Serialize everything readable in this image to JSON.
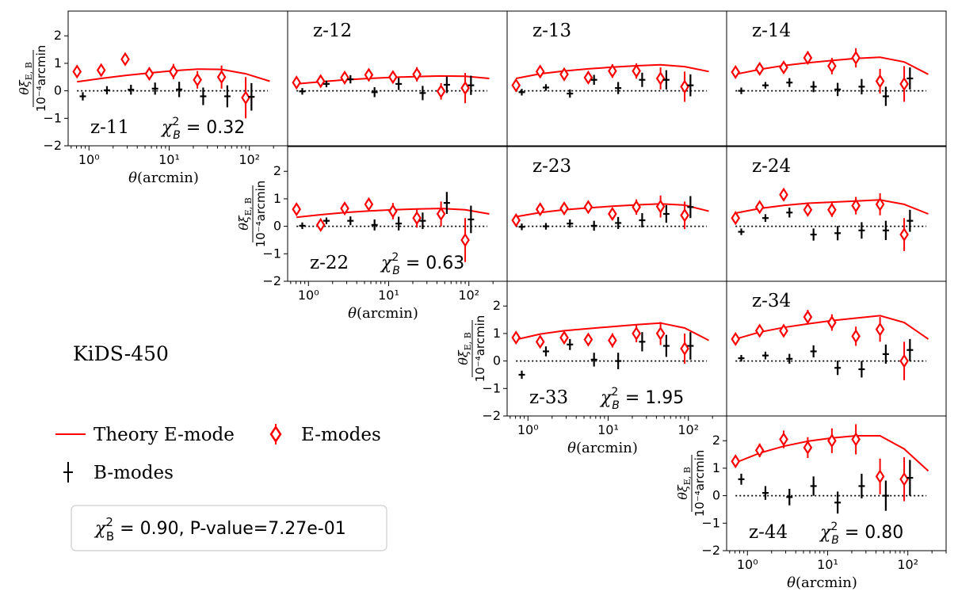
{
  "figure_title": "KiDS-450",
  "summary": {
    "text": "$\\chi^2_{\\rm B}=0.90$, P-value=7.27e-01",
    "chi_label": "χ",
    "chi_sup": "2",
    "chi_sub": "B",
    "value_text": " = 0.90, P-value=7.27e-01"
  },
  "legend": {
    "theory": "Theory E-mode",
    "emodes": "E-modes",
    "bmodes": "B-modes"
  },
  "colors": {
    "emode": "#ff0000",
    "theory": "#ff0000",
    "bmode": "#000000",
    "zero_line": "#000000"
  },
  "axis_text": {
    "xlabel_theta": "θ",
    "xlabel_unit": "(arcmin)",
    "ylabel_num": "θξ",
    "ylabel_sub": "E, B",
    "ylabel_den": "10⁻⁴arcmin",
    "yticks": [
      "−2",
      "−1",
      "0",
      "1",
      "2"
    ],
    "xticks": [
      "10⁰",
      "10¹",
      "10²"
    ]
  },
  "chart_data": {
    "type": "scatter",
    "xscale": "log",
    "xlim": [
      0.55,
      300
    ],
    "ylim": [
      -2,
      2.9
    ],
    "x_ticks": [
      1,
      10,
      100
    ],
    "y_ticks": [
      -2,
      -1,
      0,
      1,
      2
    ],
    "x": [
      0.71,
      1.42,
      2.83,
      5.65,
      11.3,
      22.5,
      45.0,
      90.0
    ],
    "theory_x": [
      0.71,
      1.42,
      2.83,
      5.65,
      11.3,
      22.5,
      45.0,
      90.0,
      180.0
    ],
    "panels": [
      {
        "id": "11",
        "label": "z-11",
        "chi2": "0.32",
        "e": [
          0.7,
          0.75,
          1.15,
          0.62,
          0.7,
          0.4,
          0.5,
          -0.25
        ],
        "e_err": [
          0.15,
          0.15,
          0.2,
          0.22,
          0.28,
          0.32,
          0.42,
          0.75
        ],
        "b": [
          -0.2,
          0.02,
          0.04,
          0.08,
          0.05,
          -0.2,
          -0.2,
          -0.22
        ],
        "b_err": [
          0.15,
          0.15,
          0.18,
          0.22,
          0.28,
          0.32,
          0.4,
          0.5
        ],
        "theory": [
          0.33,
          0.45,
          0.56,
          0.65,
          0.73,
          0.79,
          0.78,
          0.62,
          0.35
        ]
      },
      {
        "id": "12",
        "label": "z-12",
        "chi2": null,
        "e": [
          0.3,
          0.35,
          0.48,
          0.58,
          0.5,
          0.6,
          -0.02,
          0.1
        ],
        "e_err": [
          0.12,
          0.12,
          0.15,
          0.18,
          0.2,
          0.26,
          0.3,
          0.55
        ],
        "b": [
          -0.02,
          0.25,
          0.42,
          -0.05,
          0.25,
          -0.08,
          0.22,
          0.2
        ],
        "b_err": [
          0.12,
          0.12,
          0.15,
          0.18,
          0.22,
          0.26,
          0.3,
          0.35
        ],
        "theory": [
          0.25,
          0.33,
          0.4,
          0.45,
          0.49,
          0.52,
          0.54,
          0.53,
          0.45
        ]
      },
      {
        "id": "13",
        "label": "z-13",
        "chi2": null,
        "e": [
          0.2,
          0.7,
          0.6,
          0.48,
          0.72,
          0.72,
          0.45,
          0.15
        ],
        "e_err": [
          0.15,
          0.15,
          0.18,
          0.2,
          0.25,
          0.28,
          0.4,
          0.55
        ],
        "b": [
          -0.05,
          0.12,
          -0.1,
          0.4,
          0.1,
          0.4,
          0.4,
          0.2
        ],
        "b_err": [
          0.12,
          0.12,
          0.15,
          0.18,
          0.22,
          0.26,
          0.35,
          0.4
        ],
        "theory": [
          0.45,
          0.62,
          0.72,
          0.8,
          0.86,
          0.91,
          0.95,
          0.88,
          0.7
        ]
      },
      {
        "id": "14",
        "label": "z-14",
        "chi2": null,
        "e": [
          0.68,
          0.8,
          0.85,
          1.2,
          0.9,
          1.2,
          0.35,
          0.25
        ],
        "e_err": [
          0.15,
          0.16,
          0.2,
          0.24,
          0.3,
          0.35,
          0.45,
          0.65
        ],
        "b": [
          0.0,
          0.2,
          0.3,
          0.15,
          0.05,
          0.15,
          -0.2,
          0.45
        ],
        "b_err": [
          0.12,
          0.12,
          0.16,
          0.2,
          0.24,
          0.28,
          0.35,
          0.4
        ],
        "theory": [
          0.6,
          0.78,
          0.92,
          1.02,
          1.1,
          1.18,
          1.22,
          1.05,
          0.6
        ]
      },
      {
        "id": "22",
        "label": "z-22",
        "chi2": "0.63",
        "e": [
          0.62,
          0.05,
          0.65,
          0.8,
          0.55,
          0.3,
          0.45,
          -0.5
        ],
        "e_err": [
          0.15,
          0.15,
          0.2,
          0.24,
          0.3,
          0.35,
          0.45,
          0.8
        ],
        "b": [
          0.02,
          0.2,
          0.2,
          0.05,
          0.1,
          0.2,
          0.85,
          0.25
        ],
        "b_err": [
          0.12,
          0.12,
          0.16,
          0.2,
          0.25,
          0.3,
          0.4,
          0.5
        ],
        "theory": [
          0.33,
          0.42,
          0.5,
          0.56,
          0.6,
          0.63,
          0.65,
          0.6,
          0.45
        ]
      },
      {
        "id": "23",
        "label": "z-23",
        "chi2": null,
        "e": [
          0.22,
          0.62,
          0.65,
          0.7,
          0.45,
          0.7,
          0.72,
          0.4
        ],
        "e_err": [
          0.12,
          0.12,
          0.15,
          0.18,
          0.22,
          0.28,
          0.4,
          0.5
        ],
        "b": [
          -0.02,
          0.0,
          0.1,
          0.02,
          0.12,
          0.22,
          0.45,
          0.7
        ],
        "b_err": [
          0.12,
          0.12,
          0.15,
          0.18,
          0.22,
          0.26,
          0.32,
          0.4
        ],
        "theory": [
          0.35,
          0.5,
          0.6,
          0.67,
          0.73,
          0.78,
          0.82,
          0.77,
          0.55
        ]
      },
      {
        "id": "24",
        "label": "z-24",
        "chi2": null,
        "e": [
          0.3,
          0.7,
          1.15,
          0.6,
          0.6,
          0.75,
          0.8,
          -0.3
        ],
        "e_err": [
          0.15,
          0.15,
          0.18,
          0.22,
          0.26,
          0.32,
          0.4,
          0.6
        ],
        "b": [
          -0.2,
          0.3,
          0.5,
          -0.3,
          -0.25,
          -0.15,
          -0.15,
          0.2
        ],
        "b_err": [
          0.12,
          0.14,
          0.18,
          0.22,
          0.26,
          0.3,
          0.35,
          0.4
        ],
        "theory": [
          0.48,
          0.65,
          0.76,
          0.84,
          0.88,
          0.92,
          0.96,
          0.8,
          0.45
        ]
      },
      {
        "id": "33",
        "label": "z-33",
        "chi2": "1.95",
        "e": [
          0.85,
          0.7,
          0.85,
          0.78,
          0.75,
          1.0,
          1.0,
          0.45
        ],
        "e_err": [
          0.12,
          0.14,
          0.18,
          0.22,
          0.26,
          0.32,
          0.42,
          0.55
        ],
        "b": [
          -0.5,
          0.35,
          0.6,
          0.05,
          0.0,
          0.7,
          0.55,
          0.55
        ],
        "b_err": [
          0.15,
          0.18,
          0.2,
          0.25,
          0.3,
          0.35,
          0.4,
          0.5
        ],
        "theory": [
          0.78,
          0.98,
          1.1,
          1.18,
          1.25,
          1.32,
          1.38,
          1.2,
          0.75
        ]
      },
      {
        "id": "34",
        "label": "z-34",
        "chi2": null,
        "e": [
          0.8,
          1.1,
          1.1,
          1.6,
          1.4,
          0.9,
          1.15,
          0.0
        ],
        "e_err": [
          0.15,
          0.18,
          0.22,
          0.26,
          0.3,
          0.35,
          0.45,
          0.7
        ],
        "b": [
          0.1,
          0.2,
          0.08,
          0.35,
          -0.25,
          -0.3,
          0.25,
          0.4
        ],
        "b_err": [
          0.12,
          0.14,
          0.18,
          0.22,
          0.26,
          0.3,
          0.35,
          0.4
        ],
        "theory": [
          0.8,
          1.05,
          1.22,
          1.35,
          1.47,
          1.56,
          1.65,
          1.4,
          0.8
        ]
      },
      {
        "id": "44",
        "label": "z-44",
        "chi2": "0.80",
        "e": [
          1.25,
          1.65,
          2.05,
          1.75,
          2.0,
          2.05,
          0.7,
          0.6
        ],
        "e_err": [
          0.18,
          0.25,
          0.32,
          0.38,
          0.45,
          0.55,
          0.65,
          0.8
        ],
        "b": [
          0.6,
          0.1,
          -0.05,
          0.35,
          -0.25,
          0.35,
          0.0,
          0.65
        ],
        "b_err": [
          0.2,
          0.25,
          0.3,
          0.35,
          0.4,
          0.45,
          0.55,
          0.65
        ],
        "theory": [
          1.2,
          1.55,
          1.8,
          1.98,
          2.1,
          2.18,
          2.18,
          1.7,
          0.9
        ]
      }
    ]
  }
}
